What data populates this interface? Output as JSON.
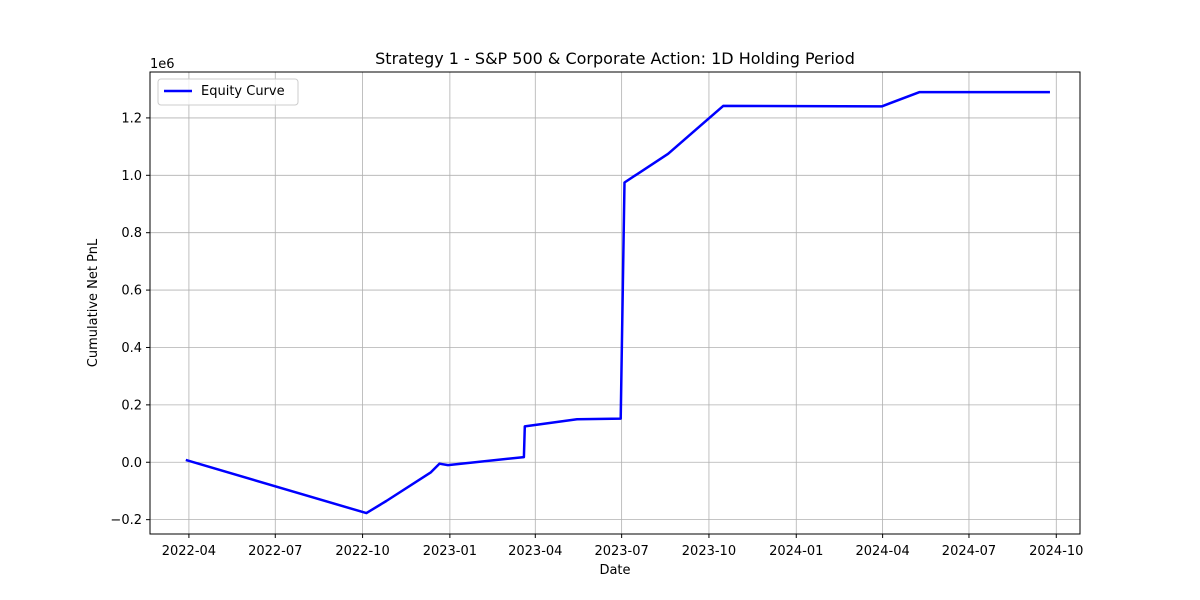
{
  "chart_data": {
    "type": "line",
    "title": "Strategy 1 - S&P 500 & Corporate Action: 1D Holding Period",
    "xlabel": "Date",
    "ylabel": "Cumulative Net PnL",
    "y_scale_label": "1e6",
    "x_tick_labels": [
      "2022-04",
      "2022-07",
      "2022-10",
      "2023-01",
      "2023-04",
      "2023-07",
      "2023-10",
      "2024-01",
      "2024-04",
      "2024-07",
      "2024-10"
    ],
    "x_tick_dates": [
      "2022-04-01",
      "2022-07-01",
      "2022-10-01",
      "2023-01-01",
      "2023-04-01",
      "2023-07-01",
      "2023-10-01",
      "2024-01-01",
      "2024-04-01",
      "2024-07-01",
      "2024-10-01"
    ],
    "y_tick_labels": [
      "−0.2",
      "0.0",
      "0.2",
      "0.4",
      "0.6",
      "0.8",
      "1.0",
      "1.2"
    ],
    "y_tick_values": [
      -0.2,
      0.0,
      0.2,
      0.4,
      0.6,
      0.8,
      1.0,
      1.2
    ],
    "xlim": [
      "2022-02-19",
      "2024-10-26"
    ],
    "ylim": [
      -0.25,
      1.36
    ],
    "grid": true,
    "legend_position": "top-left",
    "line_color": "#0000ff",
    "series": [
      {
        "name": "Equity Curve",
        "x": [
          "2022-03-30",
          "2022-10-05",
          "2022-10-26",
          "2022-12-12",
          "2022-12-21",
          "2022-12-30",
          "2023-03-20",
          "2023-03-21",
          "2023-05-15",
          "2023-06-30",
          "2023-07-04",
          "2023-08-19",
          "2023-10-16",
          "2024-03-31",
          "2024-05-10",
          "2024-09-23"
        ],
        "y": [
          0.007,
          -0.177,
          -0.135,
          -0.035,
          -0.005,
          -0.01,
          0.018,
          0.125,
          0.15,
          0.152,
          0.975,
          1.075,
          1.242,
          1.24,
          1.29,
          1.29
        ]
      }
    ]
  }
}
